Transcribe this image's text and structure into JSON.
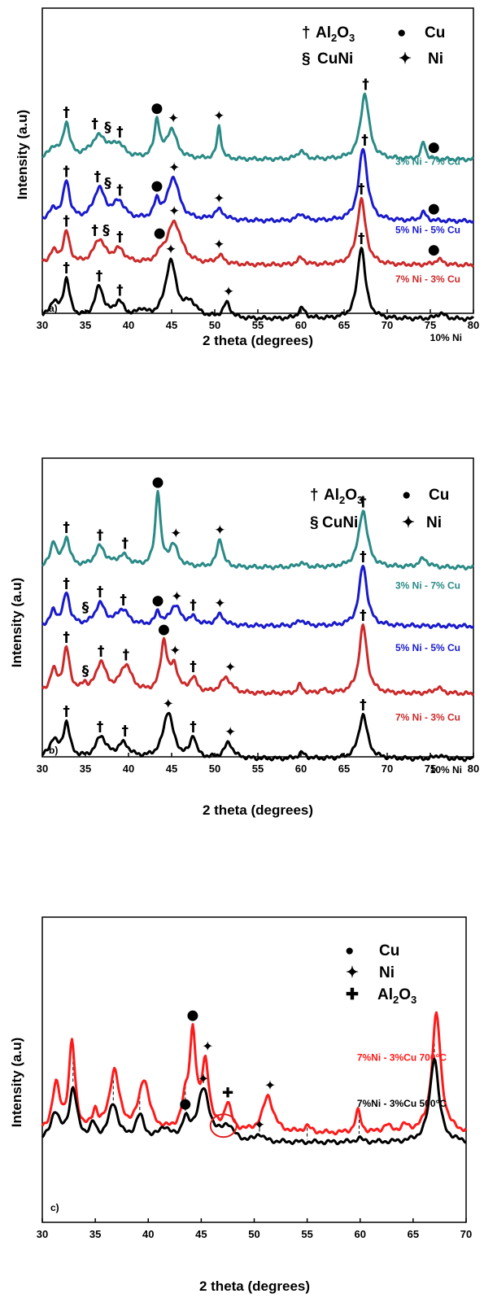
{
  "chart_data": [
    {
      "type": "line",
      "panel": "a)",
      "xlabel": "2 theta (degrees)",
      "ylabel": "Intensity (a.u)",
      "xlim": [
        30,
        80
      ],
      "xticks": [
        30,
        35,
        40,
        45,
        50,
        55,
        60,
        65,
        70,
        75,
        80
      ],
      "legend": [
        {
          "symbol": "†",
          "label": "Al2O3"
        },
        {
          "symbol": "●",
          "label": "Cu"
        },
        {
          "symbol": "§",
          "label": "CuNi"
        },
        {
          "symbol": "✦",
          "label": "Ni"
        }
      ],
      "series": [
        {
          "name": "3% Ni - 7% Cu",
          "color": "#2a8a86",
          "offset": 3.0,
          "baseline": 0.14,
          "noise": 0.03,
          "peaks": [
            [
              31.3,
              0.15,
              0.6
            ],
            [
              32.8,
              0.5,
              0.45
            ],
            [
              36.6,
              0.32,
              1.2
            ],
            [
              38.8,
              0.18,
              0.8
            ],
            [
              43.3,
              0.55,
              0.35
            ],
            [
              45,
              0.42,
              0.7
            ],
            [
              50.5,
              0.48,
              0.28
            ],
            [
              60,
              0.12,
              0.5
            ],
            [
              67.4,
              0.95,
              0.6
            ],
            [
              74.2,
              0.25,
              0.3
            ]
          ]
        },
        {
          "name": "5% Ni - 5% Cu",
          "color": "#1a1acc",
          "offset": 2.0,
          "baseline": 0.12,
          "noise": 0.03,
          "peaks": [
            [
              31.3,
              0.15,
              0.6
            ],
            [
              32.8,
              0.55,
              0.45
            ],
            [
              36.6,
              0.45,
              0.8
            ],
            [
              38.9,
              0.25,
              0.8
            ],
            [
              43.3,
              0.25,
              0.4
            ],
            [
              45.2,
              0.62,
              0.8
            ],
            [
              50.5,
              0.15,
              0.7
            ],
            [
              60,
              0.1,
              0.5
            ],
            [
              67.2,
              1.05,
              0.6
            ],
            [
              74.2,
              0.12,
              0.4
            ]
          ]
        },
        {
          "name": "7% Ni - 3% Cu",
          "color": "#cc2a2a",
          "offset": 1.0,
          "baseline": 0.14,
          "noise": 0.03,
          "peaks": [
            [
              31.3,
              0.18,
              0.6
            ],
            [
              32.8,
              0.45,
              0.45
            ],
            [
              36.6,
              0.35,
              0.8
            ],
            [
              38.9,
              0.2,
              0.8
            ],
            [
              43.8,
              0.1,
              0.4
            ],
            [
              45.3,
              0.62,
              1.0
            ],
            [
              50.6,
              0.12,
              0.6
            ],
            [
              60,
              0.1,
              0.5
            ],
            [
              67,
              0.95,
              0.6
            ],
            [
              76,
              0.08,
              0.6
            ]
          ]
        },
        {
          "name": "10% Ni",
          "color": "#000000",
          "offset": 0.0,
          "baseline": 0.15,
          "noise": 0.03,
          "peaks": [
            [
              31.3,
              0.22,
              0.6
            ],
            [
              32.8,
              0.55,
              0.45
            ],
            [
              36.6,
              0.45,
              0.6
            ],
            [
              38.9,
              0.22,
              0.7
            ],
            [
              41.5,
              0.1,
              0.6
            ],
            [
              44.9,
              0.82,
              0.75
            ],
            [
              47.2,
              0.2,
              0.9
            ],
            [
              51.4,
              0.22,
              0.5
            ],
            [
              60.1,
              0.15,
              0.5
            ],
            [
              67,
              1.05,
              0.55
            ],
            [
              76.2,
              0.08,
              0.6
            ]
          ]
        }
      ],
      "markers": [
        {
          "s": "†",
          "x": 32.8,
          "series": 0
        },
        {
          "s": "†",
          "x": 36.1,
          "series": 0
        },
        {
          "s": "§",
          "x": 37.6,
          "series": 0
        },
        {
          "s": "†",
          "x": 39,
          "series": 0
        },
        {
          "s": "●",
          "x": 43.3,
          "series": 0
        },
        {
          "s": "✦",
          "x": 45.2,
          "series": 0
        },
        {
          "s": "✦",
          "x": 50.5,
          "series": 0
        },
        {
          "s": "†",
          "x": 67.5,
          "series": 0
        },
        {
          "s": "●",
          "x": 75.4,
          "series": 0
        },
        {
          "s": "†",
          "x": 32.8,
          "series": 1
        },
        {
          "s": "†",
          "x": 36.4,
          "series": 1
        },
        {
          "s": "§",
          "x": 37.6,
          "series": 1
        },
        {
          "s": "†",
          "x": 39,
          "series": 1
        },
        {
          "s": "●",
          "x": 43.3,
          "series": 1
        },
        {
          "s": "✦",
          "x": 45.3,
          "series": 1
        },
        {
          "s": "✦",
          "x": 50.5,
          "series": 1
        },
        {
          "s": "†",
          "x": 67.4,
          "series": 1
        },
        {
          "s": "●",
          "x": 75.4,
          "series": 1
        },
        {
          "s": "†",
          "x": 32.8,
          "series": 2
        },
        {
          "s": "†",
          "x": 36.1,
          "series": 2
        },
        {
          "s": "§",
          "x": 37.4,
          "series": 2
        },
        {
          "s": "†",
          "x": 39,
          "series": 2
        },
        {
          "s": "●",
          "x": 43.6,
          "series": 2
        },
        {
          "s": "✦",
          "x": 45.3,
          "series": 2
        },
        {
          "s": "✦",
          "x": 50.5,
          "series": 2
        },
        {
          "s": "†",
          "x": 67,
          "series": 2
        },
        {
          "s": "●",
          "x": 75.4,
          "series": 2
        },
        {
          "s": "†",
          "x": 32.8,
          "series": 3
        },
        {
          "s": "†",
          "x": 36.6,
          "series": 3
        },
        {
          "s": "†",
          "x": 39,
          "series": 3
        },
        {
          "s": "✦",
          "x": 44.9,
          "series": 3
        },
        {
          "s": "✦",
          "x": 51.6,
          "series": 3
        },
        {
          "s": "†",
          "x": 67,
          "series": 3
        }
      ]
    },
    {
      "type": "line",
      "panel": "b)",
      "xlabel": "2 theta (degrees)",
      "ylabel": "Intensity (a.u)",
      "xlim": [
        30,
        80
      ],
      "xticks": [
        30,
        35,
        40,
        45,
        50,
        55,
        60,
        65,
        70,
        75,
        80
      ],
      "legend": [
        {
          "symbol": "†",
          "label": "Al2O3"
        },
        {
          "symbol": "●",
          "label": "Cu"
        },
        {
          "symbol": "§",
          "label": "CuNi"
        },
        {
          "symbol": "✦",
          "label": "Ni"
        }
      ],
      "series": [
        {
          "name": "3% Ni - 7% Cu",
          "color": "#2a8a86",
          "offset": 3.0,
          "baseline": 0.12,
          "noise": 0.03,
          "peaks": [
            [
              31.3,
              0.35,
              0.4
            ],
            [
              32.8,
              0.4,
              0.45
            ],
            [
              36.7,
              0.28,
              0.7
            ],
            [
              39.4,
              0.15,
              0.9
            ],
            [
              43.4,
              1.05,
              0.35
            ],
            [
              45.2,
              0.3,
              0.6
            ],
            [
              50.6,
              0.4,
              0.4
            ],
            [
              60,
              0.06,
              0.5
            ],
            [
              67.2,
              0.8,
              0.6
            ],
            [
              74.2,
              0.12,
              0.6
            ]
          ]
        },
        {
          "name": "5% Ni - 5% Cu",
          "color": "#1a1acc",
          "offset": 2.0,
          "baseline": 0.12,
          "noise": 0.03,
          "peaks": [
            [
              31.3,
              0.2,
              0.4
            ],
            [
              32.8,
              0.45,
              0.45
            ],
            [
              36.7,
              0.3,
              0.7
            ],
            [
              39.3,
              0.22,
              0.8
            ],
            [
              43.4,
              0.18,
              0.35
            ],
            [
              45.4,
              0.28,
              0.7
            ],
            [
              47.5,
              0.1,
              0.6
            ],
            [
              50.6,
              0.15,
              0.6
            ],
            [
              60,
              0.08,
              0.5
            ],
            [
              67.2,
              0.85,
              0.55
            ]
          ]
        },
        {
          "name": "7% Ni - 3% Cu",
          "color": "#cc2a2a",
          "offset": 1.0,
          "baseline": 0.13,
          "noise": 0.03,
          "peaks": [
            [
              31.3,
              0.3,
              0.5
            ],
            [
              32.8,
              0.6,
              0.45
            ],
            [
              34.9,
              0.1,
              0.3
            ],
            [
              36.8,
              0.42,
              0.7
            ],
            [
              39.7,
              0.38,
              0.8
            ],
            [
              44.1,
              0.7,
              0.45
            ],
            [
              45.3,
              0.35,
              0.5
            ],
            [
              47.5,
              0.2,
              0.5
            ],
            [
              51.3,
              0.22,
              0.7
            ],
            [
              59.9,
              0.12,
              0.35
            ],
            [
              62.5,
              0.05,
              0.4
            ],
            [
              67.2,
              0.95,
              0.55
            ],
            [
              75.9,
              0.08,
              0.6
            ]
          ]
        },
        {
          "name": "10% Ni",
          "color": "#000000",
          "offset": 0.0,
          "baseline": 0.15,
          "noise": 0.03,
          "peaks": [
            [
              31.3,
              0.25,
              0.6
            ],
            [
              32.8,
              0.48,
              0.45
            ],
            [
              36.8,
              0.3,
              0.7
            ],
            [
              39.4,
              0.2,
              0.8
            ],
            [
              44.6,
              0.65,
              0.7
            ],
            [
              47.5,
              0.3,
              0.4
            ],
            [
              51.6,
              0.22,
              0.6
            ],
            [
              60.1,
              0.08,
              0.5
            ],
            [
              67.2,
              0.62,
              0.6
            ],
            [
              76,
              0.05,
              0.6
            ]
          ]
        }
      ],
      "markers": [
        {
          "s": "†",
          "x": 32.8,
          "series": 0
        },
        {
          "s": "†",
          "x": 36.7,
          "series": 0
        },
        {
          "s": "†",
          "x": 39.6,
          "series": 0
        },
        {
          "s": "●",
          "x": 43.4,
          "series": 0
        },
        {
          "s": "✦",
          "x": 45.5,
          "series": 0
        },
        {
          "s": "✦",
          "x": 50.6,
          "series": 0
        },
        {
          "s": "†",
          "x": 67.2,
          "series": 0
        },
        {
          "s": "†",
          "x": 32.8,
          "series": 1
        },
        {
          "s": "§",
          "x": 35,
          "series": 1
        },
        {
          "s": "†",
          "x": 36.7,
          "series": 1
        },
        {
          "s": "†",
          "x": 39.4,
          "series": 1
        },
        {
          "s": "●",
          "x": 43.4,
          "series": 1
        },
        {
          "s": "✦",
          "x": 45.6,
          "series": 1
        },
        {
          "s": "†",
          "x": 47.5,
          "series": 1
        },
        {
          "s": "✦",
          "x": 50.6,
          "series": 1
        },
        {
          "s": "†",
          "x": 67.2,
          "series": 1
        },
        {
          "s": "†",
          "x": 32.8,
          "series": 2
        },
        {
          "s": "§",
          "x": 35,
          "series": 2
        },
        {
          "s": "†",
          "x": 36.8,
          "series": 2
        },
        {
          "s": "†",
          "x": 39.7,
          "series": 2
        },
        {
          "s": "●",
          "x": 44.1,
          "series": 2
        },
        {
          "s": "✦",
          "x": 45.4,
          "series": 2
        },
        {
          "s": "†",
          "x": 47.5,
          "series": 2
        },
        {
          "s": "✦",
          "x": 51.8,
          "series": 2
        },
        {
          "s": "†",
          "x": 67.2,
          "series": 2
        },
        {
          "s": "†",
          "x": 32.8,
          "series": 3
        },
        {
          "s": "†",
          "x": 36.7,
          "series": 3
        },
        {
          "s": "†",
          "x": 39.6,
          "series": 3
        },
        {
          "s": "✦",
          "x": 44.6,
          "series": 3
        },
        {
          "s": "†",
          "x": 47.5,
          "series": 3
        },
        {
          "s": "✦",
          "x": 51.8,
          "series": 3
        },
        {
          "s": "†",
          "x": 67.2,
          "series": 3
        }
      ]
    },
    {
      "type": "line",
      "panel": "c)",
      "xlabel": "2 theta (degrees)",
      "ylabel": "Intensity (a.u)",
      "xlim": [
        30,
        70
      ],
      "xticks": [
        30,
        35,
        40,
        45,
        50,
        55,
        60,
        65,
        70
      ],
      "legend": [
        {
          "symbol": "●",
          "label": "Cu"
        },
        {
          "symbol": "✦",
          "label": "Ni"
        },
        {
          "symbol": "✚",
          "label": "Al2O3"
        }
      ],
      "series": [
        {
          "name": "7%Ni - 3%Cu 700°C",
          "color": "#ff1a1a",
          "offset": 1.0,
          "baseline": 0.18,
          "noise": 0.02,
          "peaks": [
            [
              31.3,
              0.38,
              0.45
            ],
            [
              32.8,
              0.72,
              0.35
            ],
            [
              35,
              0.15,
              0.3
            ],
            [
              36.8,
              0.5,
              0.55
            ],
            [
              39.6,
              0.42,
              0.6
            ],
            [
              43.5,
              0.2,
              0.4
            ],
            [
              44.2,
              0.78,
              0.35
            ],
            [
              45.4,
              0.55,
              0.4
            ],
            [
              47.5,
              0.22,
              0.4
            ],
            [
              51.3,
              0.3,
              0.6
            ],
            [
              55,
              0.05,
              0.4
            ],
            [
              59.8,
              0.18,
              0.3
            ],
            [
              62.5,
              0.06,
              0.4
            ],
            [
              64.2,
              0.05,
              0.4
            ],
            [
              67.2,
              0.98,
              0.5
            ]
          ]
        },
        {
          "name": "7%Ni - 3%Cu 500°C",
          "color": "#000000",
          "offset": 0.0,
          "baseline": 0.12,
          "noise": 0.02,
          "peaks": [
            [
              31.2,
              0.23,
              0.5
            ],
            [
              32.9,
              0.42,
              0.45
            ],
            [
              34.8,
              0.12,
              0.35
            ],
            [
              36.7,
              0.3,
              0.55
            ],
            [
              39.2,
              0.2,
              0.5
            ],
            [
              41.5,
              0.1,
              0.6
            ],
            [
              43.5,
              0.15,
              0.4
            ],
            [
              45.2,
              0.42,
              0.7
            ],
            [
              47.5,
              0.12,
              0.6
            ],
            [
              50.5,
              0.06,
              0.4
            ],
            [
              59.9,
              0.03,
              0.4
            ],
            [
              67,
              0.7,
              0.5
            ]
          ]
        }
      ],
      "markers": [
        {
          "s": "●",
          "x": 44.2,
          "series": 0
        },
        {
          "s": "✦",
          "x": 45.6,
          "series": 0
        },
        {
          "s": "✚",
          "x": 47.5,
          "series": 0
        },
        {
          "s": "✦",
          "x": 51.5,
          "series": 0
        },
        {
          "s": "●",
          "x": 43.5,
          "series": 1
        },
        {
          "s": "✦",
          "x": 45.2,
          "series": 1
        },
        {
          "s": "✦",
          "x": 50.5,
          "series": 1
        }
      ],
      "reference_lines": [
        32.9,
        34.8,
        36.7,
        39.2,
        43.5,
        45.2,
        50.5,
        55.0,
        59.9,
        67.0
      ],
      "highlight": {
        "x": 47.1,
        "note": "circled"
      }
    }
  ]
}
